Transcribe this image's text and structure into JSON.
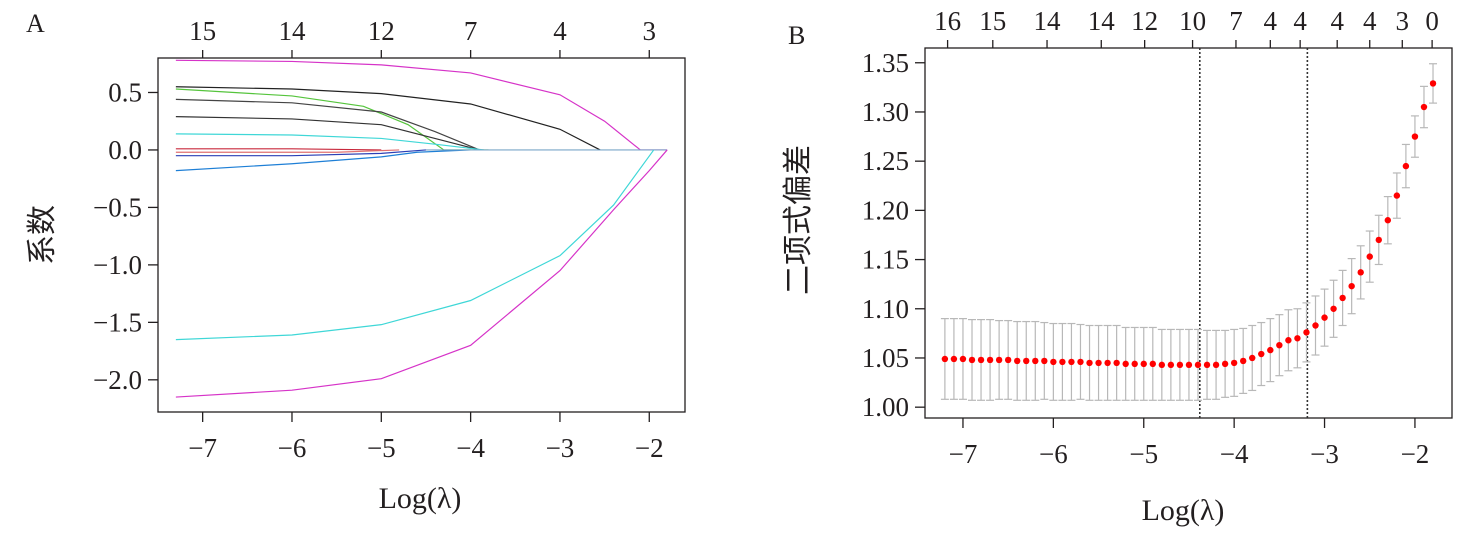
{
  "chart_data": [
    {
      "panel_label": "A",
      "type": "line",
      "xlabel": "Log(λ)",
      "ylabel": "系数",
      "xlim": [
        -7.5,
        -1.6
      ],
      "ylim": [
        -2.28,
        0.8
      ],
      "x_ticks": [
        -7,
        -6,
        -5,
        -4,
        -3,
        -2
      ],
      "x_tick_labels": [
        "−7",
        "−6",
        "−5",
        "−4",
        "−3",
        "−2"
      ],
      "y_ticks": [
        0.5,
        0.0,
        -0.5,
        -1.0,
        -1.5,
        -2.0
      ],
      "y_tick_labels": [
        "0.5",
        "0.0",
        "−0.5",
        "−1.0",
        "−1.5",
        "−2.0"
      ],
      "top_ticks": [
        -7,
        -6,
        -5,
        -4,
        -3,
        -2
      ],
      "top_tick_labels": [
        "15",
        "14",
        "12",
        "7",
        "4",
        "3"
      ],
      "grid": false,
      "series": [
        {
          "color": "#d633c8",
          "points": [
            [
              -7.3,
              0.78
            ],
            [
              -6,
              0.77
            ],
            [
              -5,
              0.74
            ],
            [
              -4,
              0.67
            ],
            [
              -3,
              0.48
            ],
            [
              -2.5,
              0.25
            ],
            [
              -2.1,
              0.0
            ],
            [
              -1.8,
              0.0
            ]
          ]
        },
        {
          "color": "#222222",
          "points": [
            [
              -7.3,
              0.55
            ],
            [
              -6,
              0.53
            ],
            [
              -5,
              0.49
            ],
            [
              -4,
              0.4
            ],
            [
              -3,
              0.18
            ],
            [
              -2.55,
              0.0
            ]
          ]
        },
        {
          "color": "#55c43c",
          "points": [
            [
              -7.3,
              0.53
            ],
            [
              -6,
              0.47
            ],
            [
              -5.2,
              0.38
            ],
            [
              -4.7,
              0.22
            ],
            [
              -4.3,
              0.0
            ],
            [
              -3.8,
              0.0
            ]
          ]
        },
        {
          "color": "#444444",
          "points": [
            [
              -7.3,
              0.44
            ],
            [
              -6,
              0.41
            ],
            [
              -5,
              0.33
            ],
            [
              -4.4,
              0.16
            ],
            [
              -3.9,
              0.0
            ]
          ]
        },
        {
          "color": "#333333",
          "points": [
            [
              -7.3,
              0.29
            ],
            [
              -6,
              0.27
            ],
            [
              -5,
              0.22
            ],
            [
              -4.4,
              0.1
            ],
            [
              -3.9,
              0.0
            ]
          ]
        },
        {
          "color": "#3fd7d7",
          "points": [
            [
              -7.3,
              0.14
            ],
            [
              -6,
              0.13
            ],
            [
              -5,
              0.1
            ],
            [
              -4.4,
              0.05
            ],
            [
              -3.85,
              0.0
            ]
          ]
        },
        {
          "color": "#c8283c",
          "points": [
            [
              -7.3,
              0.01
            ],
            [
              -6,
              0.01
            ],
            [
              -5,
              0.0
            ]
          ]
        },
        {
          "color": "#e07070",
          "points": [
            [
              -7.3,
              -0.02
            ],
            [
              -5.5,
              -0.02
            ],
            [
              -4.8,
              0.0
            ]
          ]
        },
        {
          "color": "#2c3fb5",
          "points": [
            [
              -7.3,
              -0.05
            ],
            [
              -6,
              -0.05
            ],
            [
              -5,
              -0.03
            ],
            [
              -4.5,
              0.0
            ]
          ]
        },
        {
          "color": "#1e7fd6",
          "points": [
            [
              -7.3,
              -0.18
            ],
            [
              -6,
              -0.12
            ],
            [
              -5,
              -0.06
            ],
            [
              -4.6,
              -0.02
            ],
            [
              -4,
              0.0
            ]
          ]
        },
        {
          "color": "#7aa6c8",
          "points": [
            [
              -4.5,
              0.0
            ],
            [
              -1.8,
              0.0
            ]
          ]
        },
        {
          "color": "#3fd7d7",
          "points": [
            [
              -7.3,
              -1.65
            ],
            [
              -6,
              -1.61
            ],
            [
              -5,
              -1.52
            ],
            [
              -4,
              -1.31
            ],
            [
              -3,
              -0.92
            ],
            [
              -2.4,
              -0.48
            ],
            [
              -1.95,
              0.0
            ]
          ]
        },
        {
          "color": "#d633c8",
          "points": [
            [
              -7.3,
              -2.15
            ],
            [
              -6,
              -2.09
            ],
            [
              -5,
              -1.99
            ],
            [
              -4,
              -1.7
            ],
            [
              -3,
              -1.05
            ],
            [
              -2.4,
              -0.52
            ],
            [
              -2.0,
              -0.18
            ],
            [
              -1.8,
              0.0
            ]
          ]
        }
      ]
    },
    {
      "panel_label": "B",
      "type": "scatter",
      "xlabel": "Log(λ)",
      "ylabel": "二项式偏差",
      "xlim": [
        -7.42,
        -1.59
      ],
      "ylim": [
        0.989,
        1.365
      ],
      "x_ticks": [
        -7,
        -6,
        -5,
        -4,
        -3,
        -2
      ],
      "x_tick_labels": [
        "−7",
        "−6",
        "−5",
        "−4",
        "−3",
        "−2"
      ],
      "y_ticks": [
        1.0,
        1.05,
        1.1,
        1.15,
        1.2,
        1.25,
        1.3,
        1.35
      ],
      "y_tick_labels": [
        "1.00",
        "1.05",
        "1.10",
        "1.15",
        "1.20",
        "1.25",
        "1.30",
        "1.35"
      ],
      "top_ticks": [
        -7.17,
        -6.67,
        -6.07,
        -5.47,
        -4.99,
        -4.46,
        -3.98,
        -3.6,
        -3.27,
        -2.86,
        -2.5,
        -2.14,
        -1.81
      ],
      "top_tick_labels": [
        "16",
        "15",
        "14",
        "14",
        "12",
        "10",
        "7",
        "4",
        "4",
        "4",
        "4",
        "3",
        "0"
      ],
      "vlines": [
        -4.38,
        -3.19
      ],
      "grid": false,
      "point_color": "#ff0000",
      "errorbar_color": "#b8b8b8",
      "x": [
        -7.2,
        -7.1,
        -7.0,
        -6.9,
        -6.8,
        -6.7,
        -6.6,
        -6.5,
        -6.4,
        -6.3,
        -6.2,
        -6.1,
        -6.0,
        -5.9,
        -5.8,
        -5.7,
        -5.6,
        -5.5,
        -5.4,
        -5.3,
        -5.2,
        -5.1,
        -5.0,
        -4.9,
        -4.8,
        -4.7,
        -4.6,
        -4.5,
        -4.4,
        -4.3,
        -4.2,
        -4.1,
        -4.0,
        -3.9,
        -3.8,
        -3.7,
        -3.6,
        -3.5,
        -3.4,
        -3.3,
        -3.2,
        -3.1,
        -3.0,
        -2.9,
        -2.8,
        -2.7,
        -2.6,
        -2.5,
        -2.4,
        -2.3,
        -2.2,
        -2.1,
        -2.0,
        -1.9,
        -1.8
      ],
      "y": [
        1.049,
        1.049,
        1.049,
        1.048,
        1.048,
        1.048,
        1.048,
        1.048,
        1.047,
        1.047,
        1.047,
        1.047,
        1.046,
        1.046,
        1.046,
        1.046,
        1.045,
        1.045,
        1.045,
        1.045,
        1.044,
        1.044,
        1.044,
        1.044,
        1.043,
        1.043,
        1.043,
        1.043,
        1.043,
        1.043,
        1.043,
        1.044,
        1.045,
        1.047,
        1.05,
        1.054,
        1.058,
        1.063,
        1.068,
        1.07,
        1.076,
        1.083,
        1.091,
        1.1,
        1.111,
        1.123,
        1.137,
        1.153,
        1.17,
        1.19,
        1.215,
        1.245,
        1.275,
        1.305,
        1.329
      ],
      "se": [
        0.041,
        0.041,
        0.041,
        0.041,
        0.041,
        0.041,
        0.04,
        0.04,
        0.04,
        0.04,
        0.04,
        0.039,
        0.039,
        0.039,
        0.039,
        0.038,
        0.038,
        0.038,
        0.038,
        0.038,
        0.037,
        0.037,
        0.037,
        0.037,
        0.036,
        0.036,
        0.036,
        0.036,
        0.036,
        0.035,
        0.035,
        0.034,
        0.034,
        0.033,
        0.033,
        0.032,
        0.032,
        0.031,
        0.031,
        0.03,
        0.03,
        0.03,
        0.029,
        0.029,
        0.028,
        0.028,
        0.027,
        0.026,
        0.025,
        0.024,
        0.023,
        0.022,
        0.021,
        0.021,
        0.02
      ]
    }
  ]
}
